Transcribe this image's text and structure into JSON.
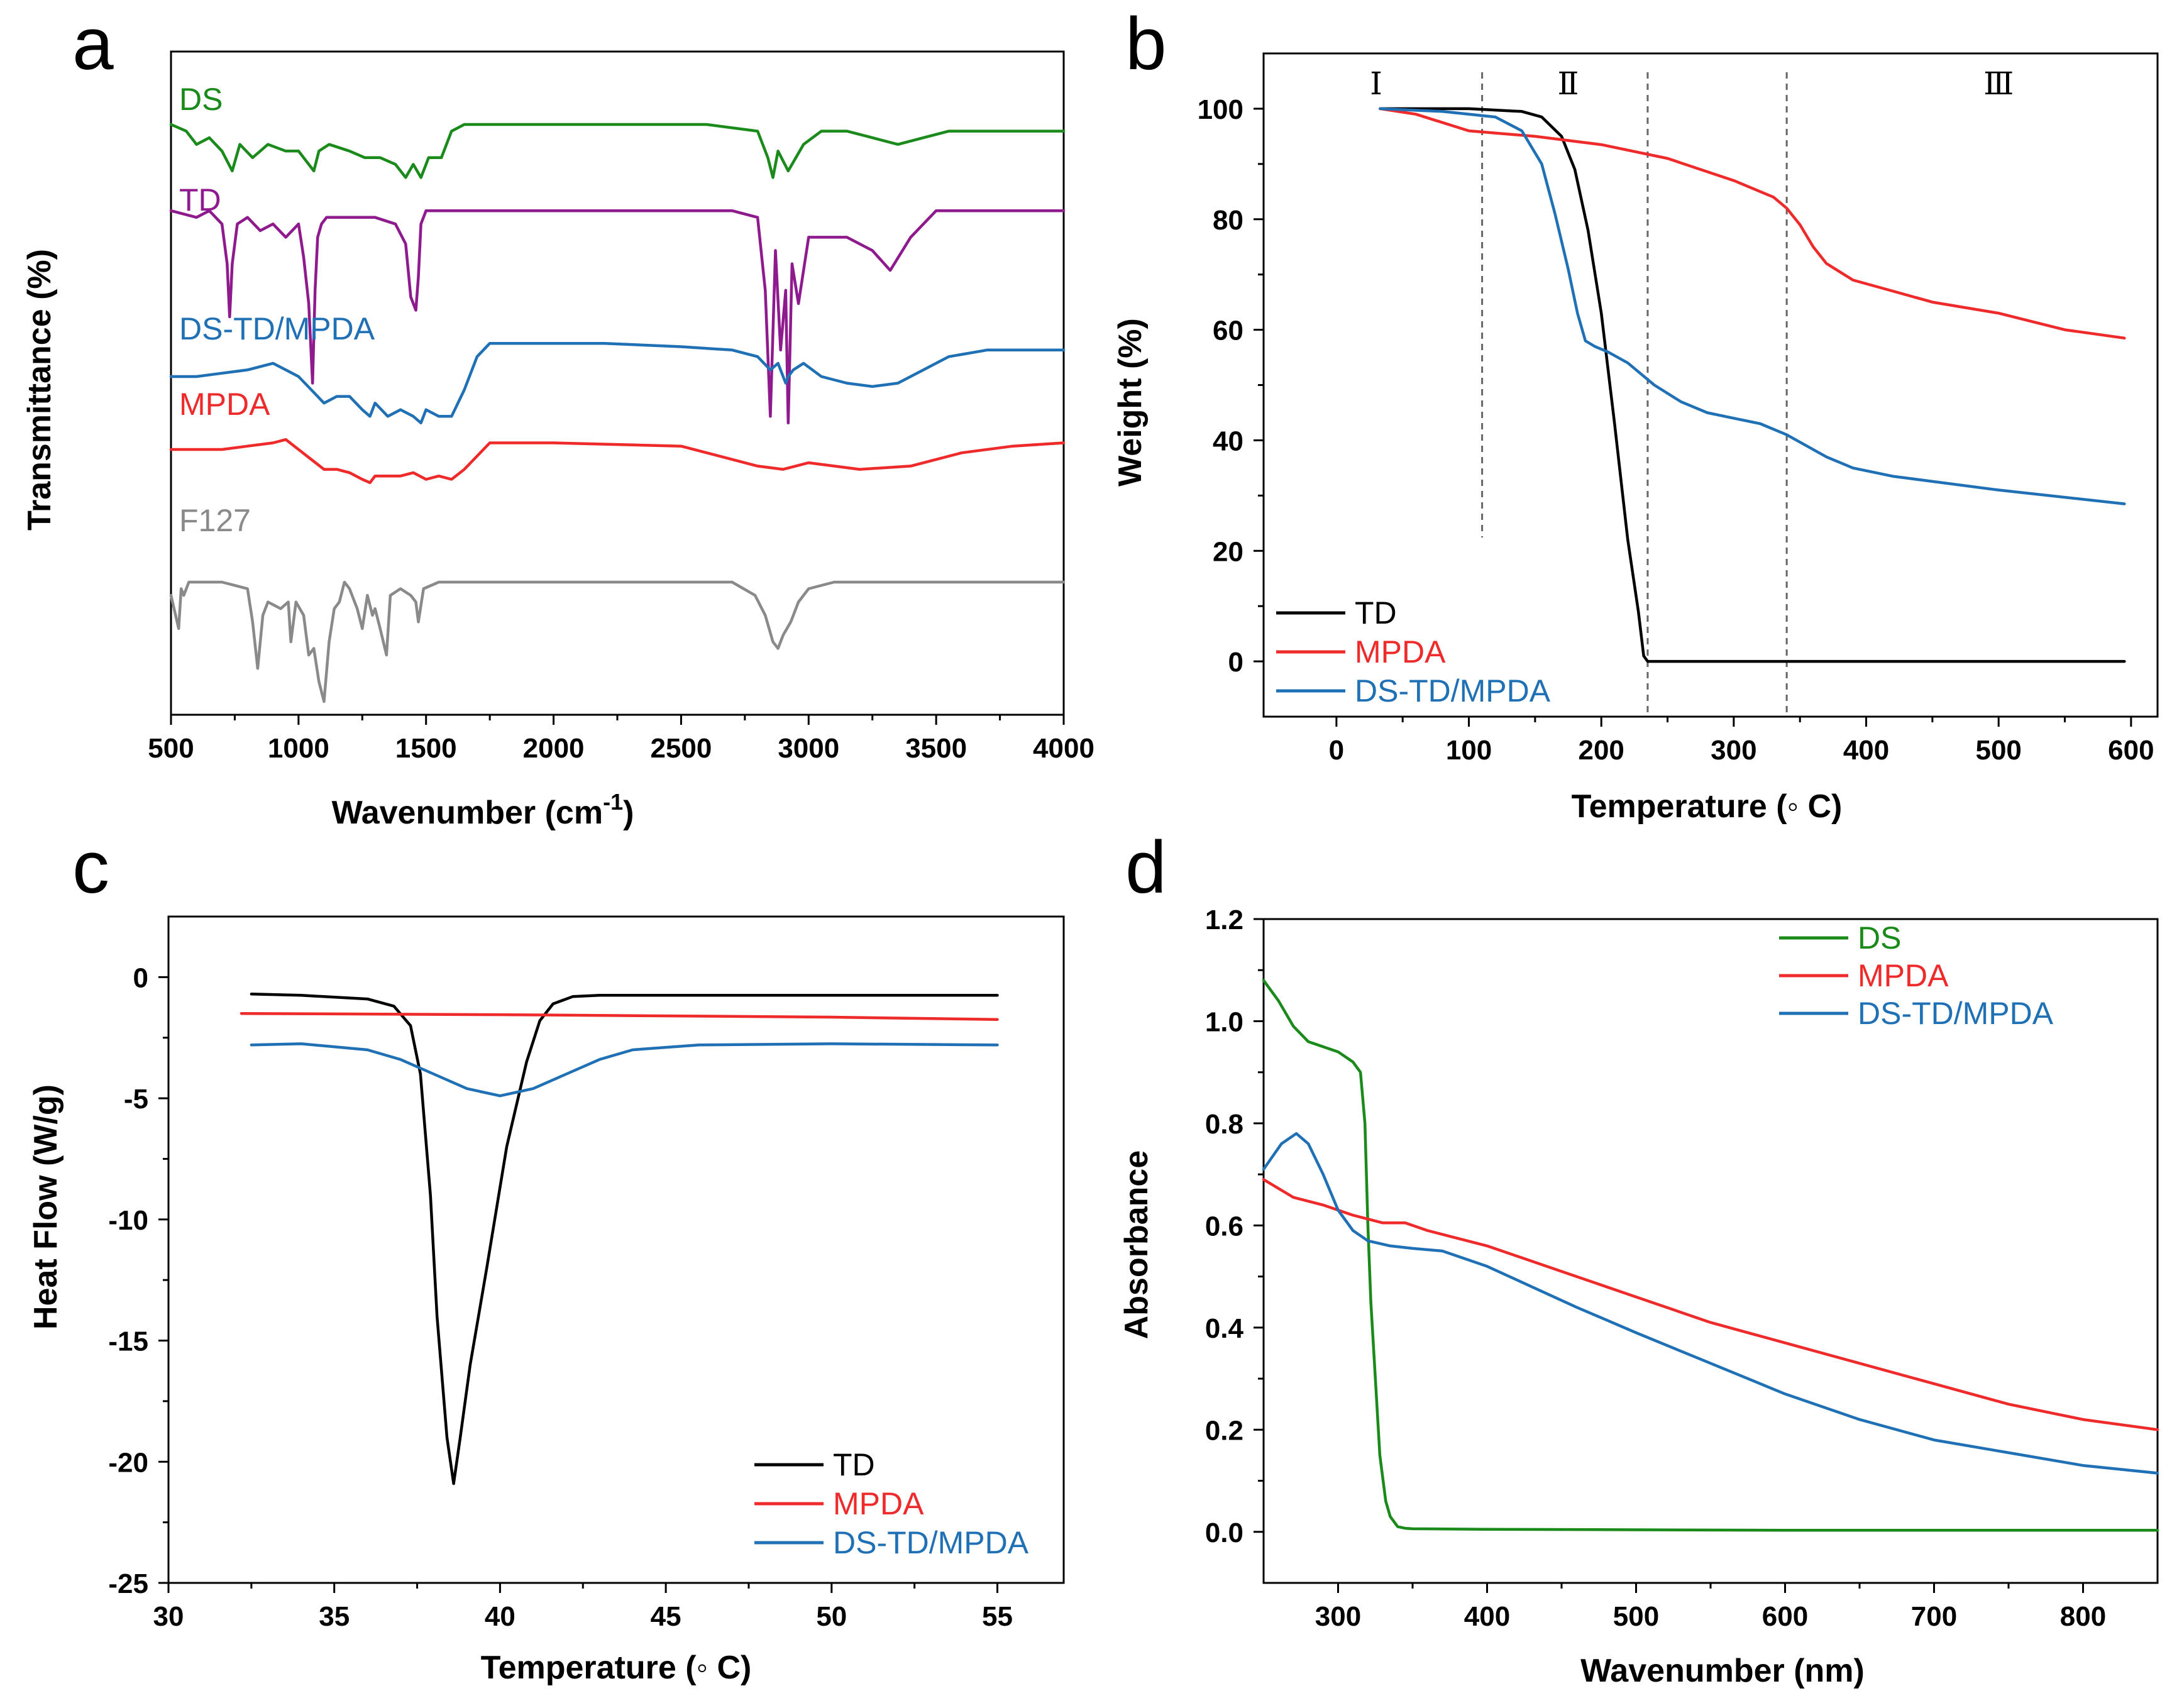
{
  "chart_data": [
    {
      "panel": "a",
      "type": "line",
      "xlabel": "Wavenumber (cm",
      "xlabel_sup": "-1",
      "xlabel_close": ")",
      "ylabel": "Transmittance (%)",
      "xlim": [
        500,
        4000
      ],
      "xticks": [
        500,
        1000,
        1500,
        2000,
        2500,
        3000,
        3500,
        4000
      ],
      "yticks": [],
      "ylim": [
        0,
        100
      ],
      "labels_inline": true,
      "series": [
        {
          "name": "DS",
          "color": "#1a8a1a",
          "x": [
            500,
            560,
            600,
            650,
            700,
            740,
            770,
            820,
            880,
            950,
            1000,
            1060,
            1080,
            1120,
            1200,
            1260,
            1320,
            1380,
            1420,
            1450,
            1480,
            1510,
            1560,
            1600,
            1650,
            1800,
            2200,
            2600,
            2800,
            2840,
            2860,
            2880,
            2920,
            2950,
            2980,
            3050,
            3150,
            3250,
            3350,
            3450,
            3550,
            3700,
            4000
          ],
          "y": [
            89,
            88,
            86,
            87,
            85,
            82,
            86,
            84,
            86,
            85,
            85,
            82,
            85,
            86,
            85,
            84,
            84,
            83,
            81,
            83,
            81,
            84,
            84,
            88,
            89,
            89,
            89,
            89,
            88,
            84,
            81,
            85,
            82,
            84,
            86,
            88,
            88,
            87,
            86,
            87,
            88,
            88,
            88
          ]
        },
        {
          "name": "TD",
          "color": "#8e1a8e",
          "x": [
            500,
            600,
            650,
            700,
            720,
            730,
            740,
            760,
            800,
            850,
            900,
            950,
            1000,
            1020,
            1040,
            1055,
            1065,
            1075,
            1090,
            1110,
            1200,
            1300,
            1380,
            1420,
            1440,
            1460,
            1470,
            1480,
            1500,
            1550,
            1600,
            2000,
            2500,
            2700,
            2800,
            2830,
            2850,
            2870,
            2890,
            2910,
            2920,
            2935,
            2960,
            3000,
            3150,
            3250,
            3320,
            3400,
            3500,
            3700,
            4000
          ],
          "y": [
            76,
            75,
            76,
            74,
            68,
            60,
            68,
            74,
            75,
            73,
            74,
            72,
            74,
            69,
            62,
            50,
            64,
            72,
            74,
            75,
            75,
            75,
            74,
            71,
            63,
            61,
            66,
            74,
            76,
            76,
            76,
            76,
            76,
            76,
            75,
            64,
            45,
            70,
            55,
            64,
            44,
            68,
            62,
            72,
            72,
            70,
            67,
            72,
            76,
            76,
            76
          ]
        },
        {
          "name": "DS-TD/MPDA",
          "color": "#1f70b5",
          "x": [
            500,
            600,
            700,
            800,
            900,
            950,
            1000,
            1050,
            1100,
            1150,
            1200,
            1250,
            1280,
            1300,
            1350,
            1400,
            1450,
            1480,
            1500,
            1550,
            1600,
            1650,
            1700,
            1750,
            1800,
            2000,
            2200,
            2500,
            2700,
            2800,
            2850,
            2880,
            2910,
            2920,
            2940,
            2980,
            3050,
            3150,
            3250,
            3350,
            3450,
            3550,
            3700,
            4000
          ],
          "y": [
            51,
            51,
            51.5,
            52,
            53,
            52,
            51,
            49,
            47,
            48,
            48,
            46,
            45,
            47,
            45,
            46,
            45,
            44,
            46,
            45,
            45,
            49,
            54,
            56,
            56,
            56,
            56,
            55.5,
            55,
            54,
            52,
            53,
            50,
            51,
            52,
            53,
            51,
            50,
            49.5,
            50,
            52,
            54,
            55,
            55
          ]
        },
        {
          "name": "MPDA",
          "color": "#ee2a2a",
          "x": [
            500,
            600,
            700,
            800,
            900,
            950,
            1000,
            1050,
            1100,
            1150,
            1200,
            1250,
            1280,
            1300,
            1400,
            1450,
            1500,
            1550,
            1600,
            1650,
            1700,
            1750,
            1800,
            2000,
            2500,
            2800,
            2900,
            3000,
            3200,
            3400,
            3600,
            3800,
            4000
          ],
          "y": [
            40,
            40,
            40,
            40.5,
            41,
            41.5,
            40,
            38.5,
            37,
            37,
            36.5,
            35.5,
            35,
            36,
            36,
            36.5,
            35.5,
            36,
            35.5,
            37,
            39,
            41,
            41,
            41,
            40.5,
            37.5,
            37,
            38,
            37,
            37.5,
            39.5,
            40.5,
            41
          ]
        },
        {
          "name": "F127",
          "color": "#8a8a8a",
          "x": [
            500,
            530,
            540,
            550,
            570,
            600,
            700,
            800,
            820,
            840,
            860,
            880,
            930,
            960,
            970,
            990,
            1020,
            1040,
            1060,
            1080,
            1100,
            1120,
            1140,
            1160,
            1180,
            1200,
            1230,
            1250,
            1270,
            1290,
            1300,
            1320,
            1345,
            1360,
            1400,
            1440,
            1460,
            1470,
            1490,
            1550,
            2000,
            2500,
            2700,
            2790,
            2830,
            2860,
            2880,
            2900,
            2930,
            2960,
            3000,
            3100,
            3500,
            4000
          ],
          "y": [
            18,
            13,
            19,
            18,
            20,
            20,
            20,
            19,
            14,
            7,
            15,
            17,
            16,
            17,
            11,
            17,
            15,
            9,
            10,
            5,
            2,
            11,
            16,
            17,
            20,
            19,
            16,
            13,
            18,
            15,
            16,
            13,
            9,
            18,
            19,
            18,
            17,
            14,
            19,
            20,
            20,
            20,
            20,
            18,
            15,
            11,
            10,
            12,
            14,
            17,
            19,
            20,
            20,
            20
          ]
        }
      ]
    },
    {
      "panel": "b",
      "type": "line",
      "xlabel": "Temperature (◦ C)",
      "ylabel": "Weight (%)",
      "xlim": [
        -55,
        620
      ],
      "ylim": [
        -10,
        110
      ],
      "xticks": [
        0,
        100,
        200,
        300,
        400,
        500,
        600
      ],
      "yticks": [
        0,
        20,
        40,
        60,
        80,
        100
      ],
      "dividers": [
        110,
        235,
        340
      ],
      "regions": [
        {
          "label": "Ⅰ",
          "x": 30
        },
        {
          "label": "Ⅱ",
          "x": 175
        },
        {
          "label": "Ⅲ",
          "x": 500
        }
      ],
      "legend": [
        "TD",
        "MPDA",
        "DS-TD/MPDA"
      ],
      "series": [
        {
          "name": "TD",
          "color": "#000000",
          "x": [
            33,
            100,
            140,
            155,
            170,
            180,
            190,
            200,
            210,
            220,
            228,
            232,
            235,
            240,
            300,
            400,
            500,
            595
          ],
          "y": [
            100,
            100,
            99.5,
            98.5,
            95,
            89,
            78,
            63,
            43,
            22,
            9,
            1,
            0,
            0,
            0,
            0,
            0,
            0
          ]
        },
        {
          "name": "MPDA",
          "color": "#ee2a2a",
          "x": [
            33,
            60,
            100,
            150,
            200,
            250,
            300,
            330,
            340,
            350,
            360,
            370,
            390,
            420,
            450,
            500,
            550,
            595
          ],
          "y": [
            100,
            99,
            96,
            95,
            93.5,
            91,
            87,
            84,
            82,
            79,
            75,
            72,
            69,
            67,
            65,
            63,
            60,
            58.5
          ]
        },
        {
          "name": "DS-TD/MPDA",
          "color": "#1f70b5",
          "x": [
            33,
            80,
            120,
            140,
            155,
            165,
            175,
            182,
            188,
            195,
            205,
            220,
            240,
            260,
            280,
            300,
            320,
            340,
            355,
            370,
            390,
            420,
            500,
            595
          ],
          "y": [
            100,
            99.5,
            98.5,
            96,
            90,
            81,
            71,
            63,
            58,
            57,
            56,
            54,
            50,
            47,
            45,
            44,
            43,
            41,
            39,
            37,
            35,
            33.5,
            31,
            28.5
          ]
        }
      ]
    },
    {
      "panel": "c",
      "type": "line",
      "xlabel": "Temperature (◦ C)",
      "ylabel": "Heat Flow (W/g)",
      "xlim": [
        30,
        57
      ],
      "ylim": [
        -25,
        2.5
      ],
      "xticks": [
        30,
        35,
        40,
        45,
        50,
        55
      ],
      "yticks": [
        0,
        -5,
        -10,
        -15,
        -20,
        -25
      ],
      "legend": [
        "TD",
        "MPDA",
        "DS-TD/MPDA"
      ],
      "series": [
        {
          "name": "TD",
          "color": "#000000",
          "x": [
            32.5,
            34,
            36,
            36.8,
            37.3,
            37.6,
            37.9,
            38.1,
            38.4,
            38.6,
            38.8,
            39.1,
            39.6,
            40.2,
            40.8,
            41.2,
            41.6,
            42.2,
            43,
            46,
            50,
            55
          ],
          "y": [
            -0.7,
            -0.75,
            -0.9,
            -1.2,
            -2,
            -4,
            -9,
            -14,
            -19,
            -20.9,
            -19,
            -16,
            -12,
            -7,
            -3.5,
            -1.8,
            -1.1,
            -0.8,
            -0.75,
            -0.75,
            -0.75,
            -0.75
          ]
        },
        {
          "name": "MPDA",
          "color": "#ee2a2a",
          "x": [
            32.2,
            40,
            50,
            55
          ],
          "y": [
            -1.5,
            -1.55,
            -1.65,
            -1.75
          ]
        },
        {
          "name": "DS-TD/MPDA",
          "color": "#1f70b5",
          "x": [
            32.5,
            34,
            36,
            37,
            38,
            39,
            40,
            41,
            42,
            43,
            44,
            46,
            50,
            55
          ],
          "y": [
            -2.8,
            -2.75,
            -3.0,
            -3.4,
            -4.0,
            -4.6,
            -4.9,
            -4.6,
            -4.0,
            -3.4,
            -3.0,
            -2.8,
            -2.75,
            -2.8
          ]
        }
      ]
    },
    {
      "panel": "d",
      "type": "line",
      "xlabel": "Wavenumber (nm)",
      "ylabel": "Absorbance",
      "xlim": [
        250,
        850
      ],
      "ylim": [
        -0.1,
        1.2
      ],
      "xticks": [
        300,
        400,
        500,
        600,
        700,
        800
      ],
      "yticks": [
        0.0,
        0.2,
        0.4,
        0.6,
        0.8,
        1.0,
        1.2
      ],
      "legend": [
        "DS",
        "MPDA",
        "DS-TD/MPDA"
      ],
      "series": [
        {
          "name": "DS",
          "color": "#1a8a1a",
          "x": [
            250,
            260,
            270,
            280,
            290,
            300,
            310,
            315,
            318,
            320,
            322,
            325,
            328,
            332,
            335,
            340,
            345,
            350,
            400,
            500,
            600,
            700,
            850
          ],
          "y": [
            1.08,
            1.04,
            0.99,
            0.96,
            0.95,
            0.94,
            0.92,
            0.9,
            0.8,
            0.6,
            0.45,
            0.3,
            0.15,
            0.06,
            0.03,
            0.01,
            0.007,
            0.006,
            0.005,
            0.004,
            0.003,
            0.003,
            0.003
          ]
        },
        {
          "name": "MPDA",
          "color": "#ee2a2a",
          "x": [
            250,
            270,
            290,
            310,
            330,
            345,
            360,
            400,
            450,
            500,
            550,
            600,
            650,
            700,
            750,
            800,
            850
          ],
          "y": [
            0.69,
            0.655,
            0.64,
            0.62,
            0.605,
            0.605,
            0.59,
            0.56,
            0.51,
            0.46,
            0.41,
            0.37,
            0.33,
            0.29,
            0.25,
            0.22,
            0.2
          ]
        },
        {
          "name": "DS-TD/MPDA",
          "color": "#1f70b5",
          "x": [
            250,
            262,
            272,
            280,
            290,
            300,
            310,
            320,
            335,
            350,
            370,
            400,
            430,
            460,
            500,
            550,
            600,
            650,
            700,
            750,
            800,
            850
          ],
          "y": [
            0.71,
            0.76,
            0.78,
            0.76,
            0.7,
            0.63,
            0.59,
            0.57,
            0.56,
            0.555,
            0.55,
            0.52,
            0.48,
            0.44,
            0.39,
            0.33,
            0.27,
            0.22,
            0.18,
            0.155,
            0.13,
            0.115
          ]
        }
      ]
    }
  ]
}
